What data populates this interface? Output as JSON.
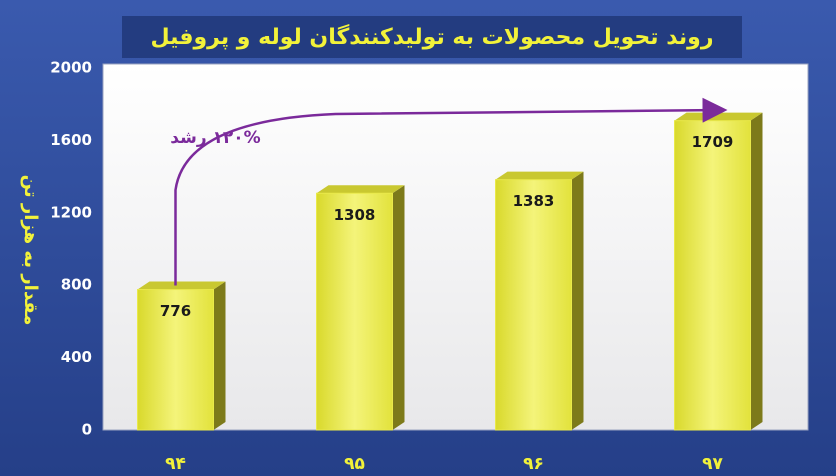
{
  "chart_data": {
    "type": "bar3d",
    "title": "روند تحویل محصولات به تولیدکنندگان لوله و پروفیل",
    "y_label": "مقدار به هزار تن",
    "annotation": "۱۲۰% رشد",
    "categories": [
      "۹۴",
      "۹۵",
      "۹۶",
      "۹۷"
    ],
    "values": [
      776,
      1308,
      1383,
      1709
    ],
    "color": "#e9e94a",
    "ylim": [
      0,
      2000
    ],
    "yticks": [
      0,
      400,
      800,
      1200,
      1600,
      2000
    ],
    "grid": false
  }
}
